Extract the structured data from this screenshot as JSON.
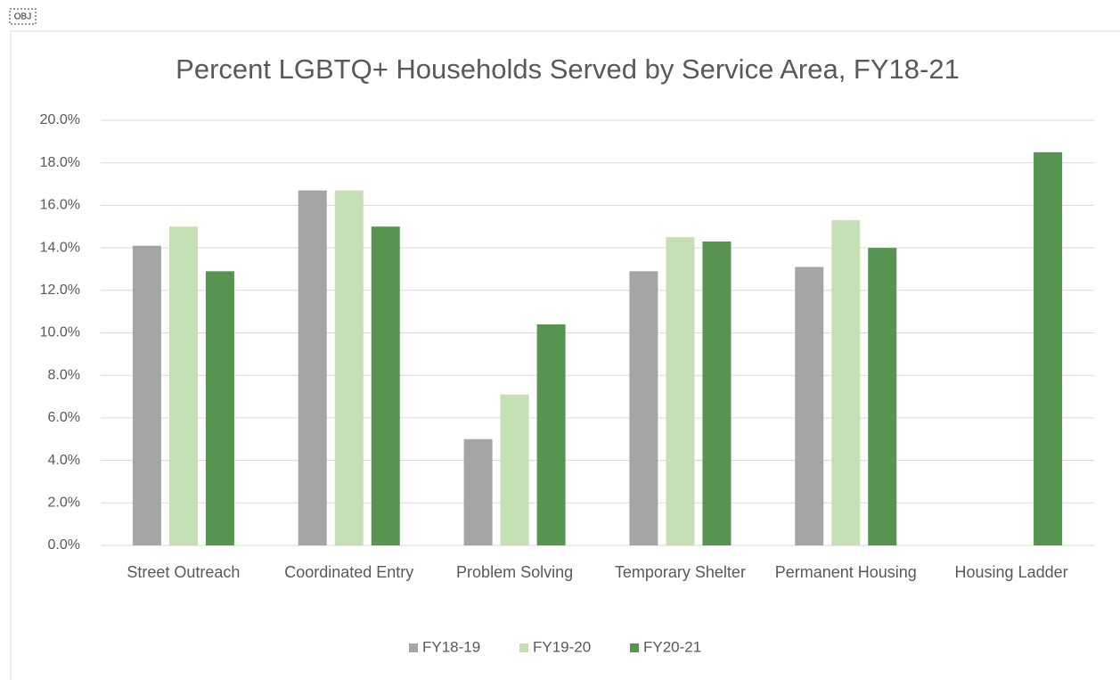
{
  "chart_data": {
    "type": "bar",
    "title": "Percent LGBTQ+ Households Served by Service Area, FY18-21",
    "categories": [
      "Street Outreach",
      "Coordinated Entry",
      "Problem Solving",
      "Temporary Shelter",
      "Permanent Housing",
      "Housing Ladder"
    ],
    "series": [
      {
        "name": "FY18-19",
        "color": "#a5a5a5",
        "values": [
          14.1,
          16.7,
          5.0,
          12.9,
          13.1,
          null
        ]
      },
      {
        "name": "FY19-20",
        "color": "#c5e0b4",
        "values": [
          15.0,
          16.7,
          7.1,
          14.5,
          15.3,
          null
        ]
      },
      {
        "name": "FY20-21",
        "color": "#56944f",
        "values": [
          12.9,
          15.0,
          10.4,
          14.3,
          14.0,
          18.5
        ]
      }
    ],
    "ylim": [
      0,
      20
    ],
    "yticks": [
      {
        "value": 0,
        "label": "0.0%"
      },
      {
        "value": 2,
        "label": "2.0%"
      },
      {
        "value": 4,
        "label": "4.0%"
      },
      {
        "value": 6,
        "label": "6.0%"
      },
      {
        "value": 8,
        "label": "8.0%"
      },
      {
        "value": 10,
        "label": "10.0%"
      },
      {
        "value": 12,
        "label": "12.0%"
      },
      {
        "value": 14,
        "label": "14.0%"
      },
      {
        "value": 16,
        "label": "16.0%"
      },
      {
        "value": 18,
        "label": "18.0%"
      },
      {
        "value": 20,
        "label": "20.0%"
      }
    ],
    "grid": true,
    "legend": "bottom"
  }
}
